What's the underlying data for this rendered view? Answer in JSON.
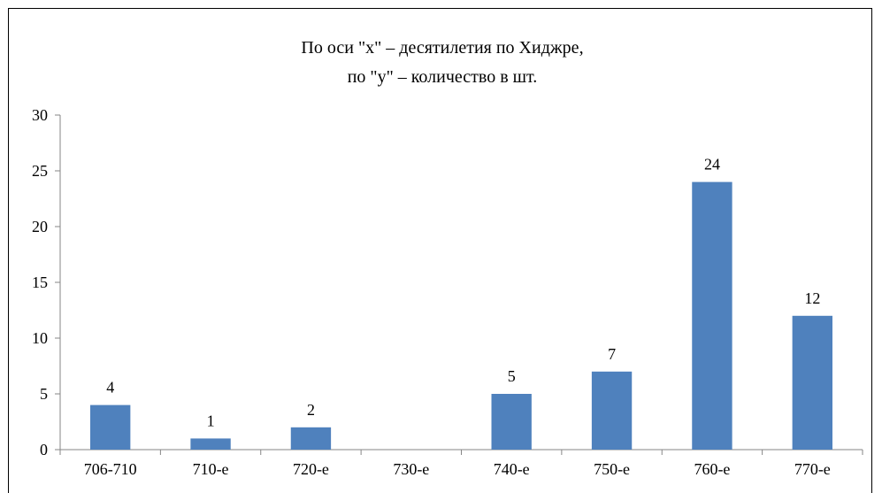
{
  "chart_data": {
    "type": "bar",
    "title": [
      "По оси \"x\" – десятилетия по Хиджре,",
      "по \"y\" – количество в шт."
    ],
    "categories": [
      "706-710",
      "710-е",
      "720-е",
      "730-е",
      "740-е",
      "750-е",
      "760-е",
      "770-е"
    ],
    "values": [
      4,
      1,
      2,
      0,
      5,
      7,
      24,
      12
    ],
    "data_labels": [
      "4",
      "1",
      "2",
      "",
      "5",
      "7",
      "24",
      "12"
    ],
    "ylim": [
      0,
      30
    ],
    "yticks": [
      0,
      5,
      10,
      15,
      20,
      25,
      30
    ],
    "grid": false,
    "bar_color": "#4F81BD",
    "xlabel": "",
    "ylabel": ""
  }
}
